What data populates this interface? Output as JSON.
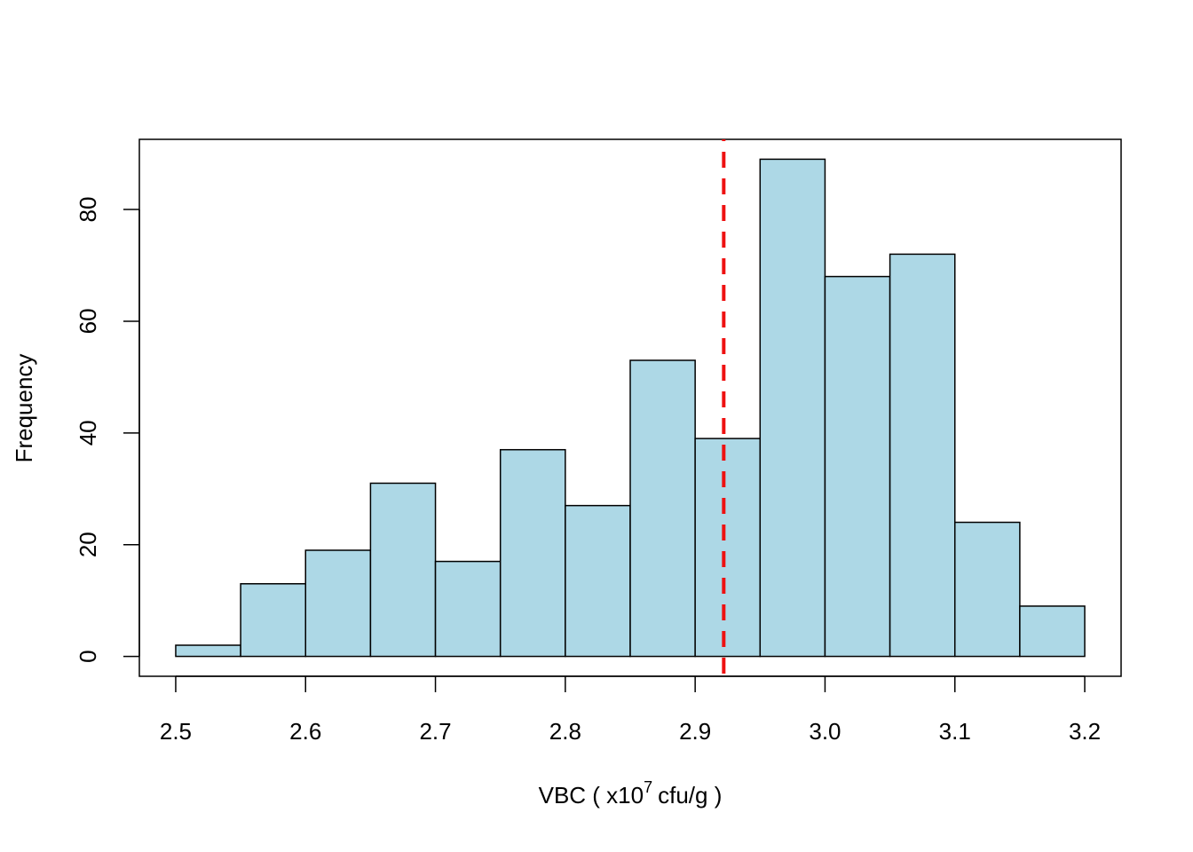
{
  "chart_data": {
    "type": "histogram",
    "xlabel": "VBC ( x10",
    "xlabel_sup": "7",
    "xlabel_rest": "cfu/g )",
    "ylabel": "Frequency",
    "bins": [
      2.5,
      2.55,
      2.6,
      2.65,
      2.7,
      2.75,
      2.8,
      2.85,
      2.9,
      2.95,
      3.0,
      3.05,
      3.1,
      3.15,
      3.2
    ],
    "values": [
      2,
      13,
      19,
      31,
      17,
      37,
      27,
      53,
      39,
      89,
      68,
      72,
      24,
      9
    ],
    "color": "#add8e6",
    "xlim": [
      2.472,
      3.228
    ],
    "ylim": [
      -3.56,
      92.56
    ],
    "xticks": [
      2.5,
      2.6,
      2.7,
      2.8,
      2.9,
      {
        "value": 3,
        "label": "3.0"
      },
      3.1,
      3.2
    ],
    "yticks": [
      0,
      20,
      40,
      60,
      80
    ],
    "vline": 2.922,
    "vline_color": "#ee1111"
  }
}
